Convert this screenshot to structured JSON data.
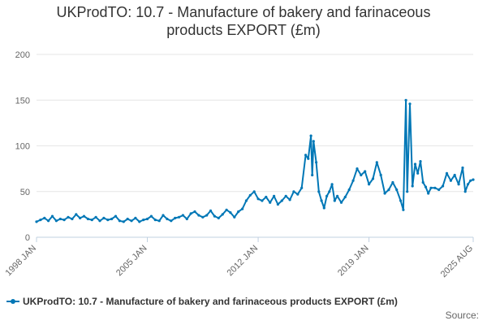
{
  "chart_data": {
    "type": "line",
    "title_line1": "UKProdTO: 10.7 - Manufacture of bakery and farinaceous",
    "title_line2": "products EXPORT (£m)",
    "legend": {
      "label": "UKProdTO: 10.7 - Manufacture of bakery and farinaceous products EXPORT (£m)",
      "position": "bottom-left"
    },
    "source_label": "Source:",
    "y_axis": {
      "min": 0,
      "max": 200,
      "ticks": [
        "0",
        "50",
        "100",
        "150",
        "200"
      ],
      "grid": true
    },
    "x_axis": {
      "start": "1998-01",
      "end": "2025-08",
      "ticks": [
        {
          "label": "1998 JAN",
          "date": "1998-01"
        },
        {
          "label": "2005 JAN",
          "date": "2005-01"
        },
        {
          "label": "2012 JAN",
          "date": "2012-01"
        },
        {
          "label": "2019 JAN",
          "date": "2019-01"
        },
        {
          "label": "2025 AUG",
          "date": "2025-08"
        }
      ]
    },
    "colors": {
      "series": "#0077b6",
      "grid": "#e6e6e6",
      "axis": "#c0d0e0",
      "text": "#666666"
    },
    "series": [
      {
        "name": "UKProdTO: 10.7 - Manufacture of bakery and farinaceous products EXPORT (£m)",
        "points": [
          [
            "1998-01",
            17
          ],
          [
            "1998-04",
            19
          ],
          [
            "1998-07",
            21
          ],
          [
            "1998-10",
            18
          ],
          [
            "1999-01",
            23
          ],
          [
            "1999-04",
            18
          ],
          [
            "1999-07",
            20
          ],
          [
            "1999-10",
            19
          ],
          [
            "2000-01",
            22
          ],
          [
            "2000-04",
            20
          ],
          [
            "2000-07",
            25
          ],
          [
            "2000-10",
            21
          ],
          [
            "2001-01",
            23
          ],
          [
            "2001-04",
            20
          ],
          [
            "2001-07",
            19
          ],
          [
            "2001-10",
            22
          ],
          [
            "2002-01",
            18
          ],
          [
            "2002-04",
            21
          ],
          [
            "2002-07",
            19
          ],
          [
            "2002-10",
            20
          ],
          [
            "2003-01",
            23
          ],
          [
            "2003-04",
            18
          ],
          [
            "2003-07",
            17
          ],
          [
            "2003-10",
            20
          ],
          [
            "2004-01",
            18
          ],
          [
            "2004-04",
            21
          ],
          [
            "2004-07",
            17
          ],
          [
            "2004-10",
            19
          ],
          [
            "2005-01",
            20
          ],
          [
            "2005-04",
            23
          ],
          [
            "2005-07",
            19
          ],
          [
            "2005-10",
            18
          ],
          [
            "2006-01",
            24
          ],
          [
            "2006-04",
            20
          ],
          [
            "2006-07",
            18
          ],
          [
            "2006-10",
            21
          ],
          [
            "2007-01",
            22
          ],
          [
            "2007-04",
            24
          ],
          [
            "2007-07",
            20
          ],
          [
            "2007-10",
            26
          ],
          [
            "2008-01",
            28
          ],
          [
            "2008-04",
            24
          ],
          [
            "2008-07",
            22
          ],
          [
            "2008-10",
            24
          ],
          [
            "2009-01",
            29
          ],
          [
            "2009-04",
            23
          ],
          [
            "2009-07",
            21
          ],
          [
            "2009-10",
            25
          ],
          [
            "2010-01",
            30
          ],
          [
            "2010-04",
            27
          ],
          [
            "2010-07",
            22
          ],
          [
            "2010-10",
            28
          ],
          [
            "2011-01",
            31
          ],
          [
            "2011-04",
            40
          ],
          [
            "2011-07",
            46
          ],
          [
            "2011-10",
            50
          ],
          [
            "2012-01",
            42
          ],
          [
            "2012-04",
            40
          ],
          [
            "2012-07",
            44
          ],
          [
            "2012-10",
            38
          ],
          [
            "2013-01",
            45
          ],
          [
            "2013-04",
            36
          ],
          [
            "2013-07",
            40
          ],
          [
            "2013-10",
            45
          ],
          [
            "2014-01",
            41
          ],
          [
            "2014-04",
            50
          ],
          [
            "2014-07",
            47
          ],
          [
            "2014-10",
            54
          ],
          [
            "2015-01",
            90
          ],
          [
            "2015-03",
            86
          ],
          [
            "2015-05",
            111
          ],
          [
            "2015-06",
            68
          ],
          [
            "2015-07",
            105
          ],
          [
            "2015-09",
            82
          ],
          [
            "2015-11",
            50
          ],
          [
            "2016-01",
            40
          ],
          [
            "2016-03",
            32
          ],
          [
            "2016-05",
            45
          ],
          [
            "2016-07",
            50
          ],
          [
            "2016-09",
            58
          ],
          [
            "2016-11",
            40
          ],
          [
            "2017-01",
            45
          ],
          [
            "2017-04",
            38
          ],
          [
            "2017-07",
            44
          ],
          [
            "2017-10",
            52
          ],
          [
            "2018-01",
            62
          ],
          [
            "2018-04",
            75
          ],
          [
            "2018-07",
            68
          ],
          [
            "2018-10",
            72
          ],
          [
            "2019-01",
            58
          ],
          [
            "2019-04",
            64
          ],
          [
            "2019-07",
            82
          ],
          [
            "2019-10",
            68
          ],
          [
            "2020-01",
            48
          ],
          [
            "2020-04",
            52
          ],
          [
            "2020-07",
            60
          ],
          [
            "2020-10",
            52
          ],
          [
            "2021-01",
            40
          ],
          [
            "2021-03",
            30
          ],
          [
            "2021-05",
            150
          ],
          [
            "2021-06",
            50
          ],
          [
            "2021-08",
            146
          ],
          [
            "2021-10",
            56
          ],
          [
            "2021-12",
            80
          ],
          [
            "2022-02",
            70
          ],
          [
            "2022-04",
            83
          ],
          [
            "2022-06",
            60
          ],
          [
            "2022-08",
            55
          ],
          [
            "2022-10",
            48
          ],
          [
            "2022-12",
            54
          ],
          [
            "2023-03",
            54
          ],
          [
            "2023-06",
            52
          ],
          [
            "2023-09",
            56
          ],
          [
            "2023-12",
            70
          ],
          [
            "2024-03",
            62
          ],
          [
            "2024-06",
            68
          ],
          [
            "2024-09",
            58
          ],
          [
            "2024-12",
            76
          ],
          [
            "2025-02",
            50
          ],
          [
            "2025-04",
            58
          ],
          [
            "2025-06",
            62
          ],
          [
            "2025-08",
            63
          ]
        ]
      }
    ]
  }
}
